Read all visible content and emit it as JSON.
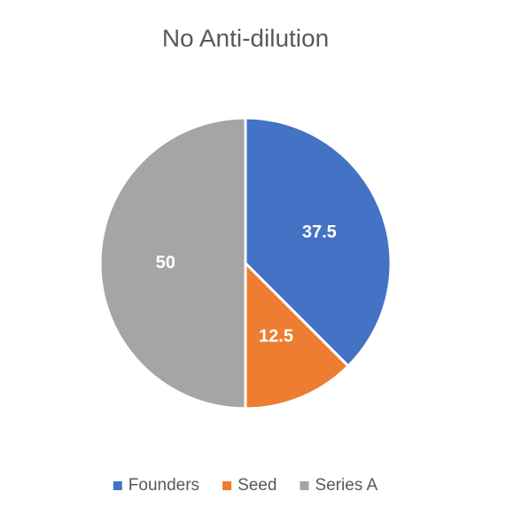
{
  "chart_data": {
    "type": "pie",
    "title": "No Anti-dilution",
    "categories": [
      "Founders",
      "Seed",
      "Series A"
    ],
    "values": [
      37.5,
      12.5,
      50
    ],
    "colors": [
      "#4472c4",
      "#ed7d31",
      "#a5a5a5"
    ],
    "legend": "bottom"
  }
}
